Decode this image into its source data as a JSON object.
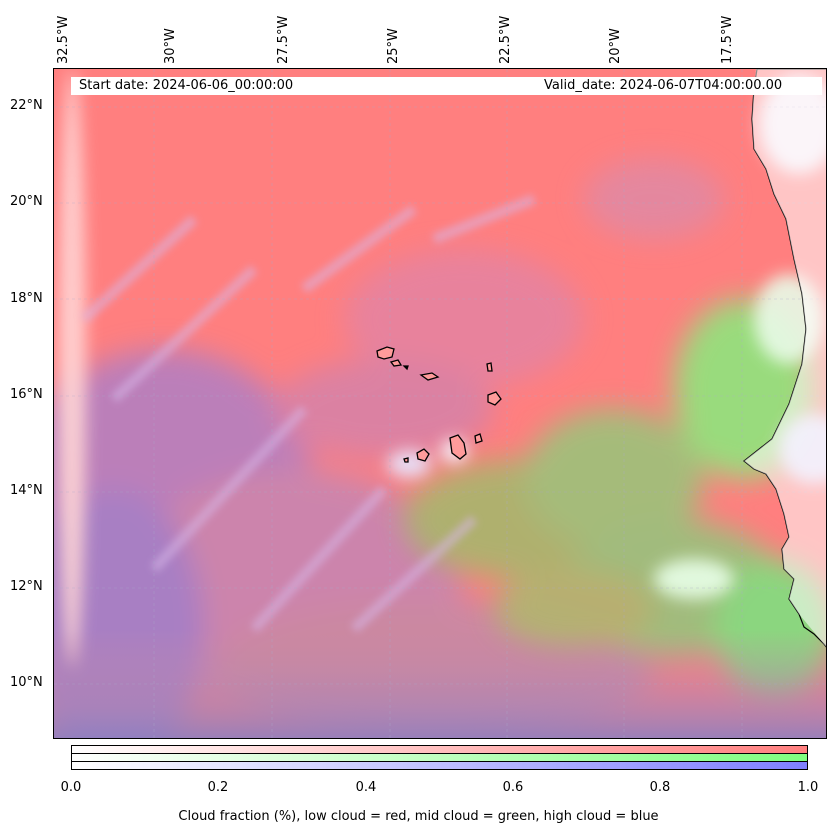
{
  "map": {
    "type": "cloud-fraction-composite",
    "start_date": "Start date: 2024-06-06_00:00:00",
    "valid_date": "Valid_date: 2024-06-07T04:00:00.00",
    "longitude_labels": [
      "32.5°W",
      "30°W",
      "27.5°W",
      "25°W",
      "22.5°W",
      "20°W",
      "17.5°W"
    ],
    "latitude_labels": [
      "22°N",
      "20°N",
      "18°N",
      "16°N",
      "14°N",
      "12°N",
      "10°N"
    ],
    "extent": {
      "lon": [
        -33,
        -15.8
      ],
      "lat": [
        8.9,
        22.8
      ]
    },
    "channels": {
      "low_cloud": "#ff7f7f",
      "mid_cloud": "#7fff7f",
      "high_cloud": "#7f7fff"
    }
  },
  "colorbar": {
    "ticks": [
      "0.0",
      "0.2",
      "0.4",
      "0.6",
      "0.8",
      "1.0"
    ],
    "range": [
      0.0,
      1.0
    ],
    "label": "Cloud fraction (%), low cloud = red, mid cloud = green, high cloud = blue",
    "colors": [
      "#ff7f7f",
      "#7fff7f",
      "#7f7fff"
    ]
  }
}
